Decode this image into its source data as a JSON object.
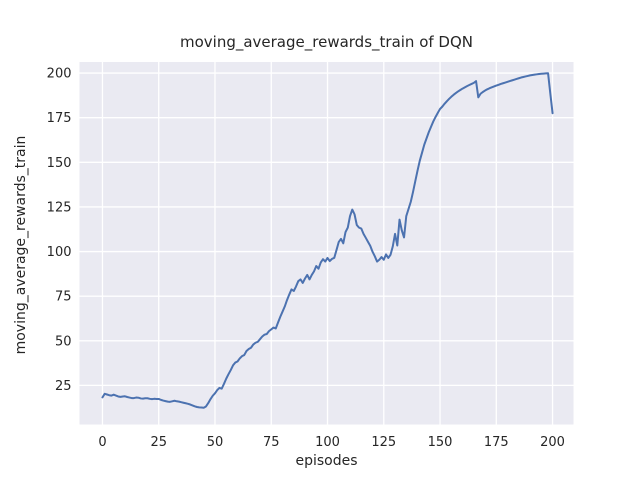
{
  "chart_data": {
    "type": "line",
    "title": "moving_average_rewards_train of DQN",
    "xlabel": "episodes",
    "ylabel": "moving_average_rewards_train",
    "xlim": [
      -10.2,
      209.3
    ],
    "ylim": [
      3.1,
      206.2
    ],
    "x_ticks": [
      0,
      25,
      50,
      75,
      100,
      125,
      150,
      175,
      200
    ],
    "y_ticks": [
      25,
      50,
      75,
      100,
      125,
      150,
      175,
      200
    ],
    "grid": true,
    "legend": "none",
    "colors": {
      "line": "#4C72B0",
      "plot_background": "#EAEAF2",
      "grid": "#FFFFFF",
      "figure_background": "#FFFFFF",
      "text": "#262626"
    },
    "series": [
      {
        "name": "moving_average_rewards_train",
        "x": [
          0,
          1,
          2,
          3,
          4,
          5,
          6,
          7,
          8,
          9,
          10,
          11,
          12,
          13,
          14,
          15,
          16,
          17,
          18,
          19,
          20,
          21,
          22,
          23,
          24,
          25,
          26,
          27,
          28,
          29,
          30,
          31,
          32,
          33,
          34,
          35,
          36,
          37,
          38,
          39,
          40,
          41,
          42,
          43,
          44,
          45,
          46,
          47,
          48,
          49,
          50,
          51,
          52,
          53,
          54,
          55,
          56,
          57,
          58,
          59,
          60,
          61,
          62,
          63,
          64,
          65,
          66,
          67,
          68,
          69,
          70,
          71,
          72,
          73,
          74,
          75,
          76,
          77,
          78,
          79,
          80,
          81,
          82,
          83,
          84,
          85,
          86,
          87,
          88,
          89,
          90,
          91,
          92,
          93,
          94,
          95,
          96,
          97,
          98,
          99,
          100,
          101,
          102,
          103,
          104,
          105,
          106,
          107,
          108,
          109,
          110,
          111,
          112,
          113,
          114,
          115,
          116,
          117,
          118,
          119,
          120,
          121,
          122,
          123,
          124,
          125,
          126,
          127,
          128,
          129,
          130,
          131,
          132,
          133,
          134,
          135,
          136,
          137,
          138,
          139,
          140,
          141,
          142,
          143,
          144,
          145,
          146,
          147,
          148,
          149,
          150,
          151,
          152,
          153,
          154,
          155,
          156,
          157,
          158,
          159,
          160,
          161,
          162,
          163,
          164,
          165,
          166,
          167,
          168,
          169,
          170,
          171,
          172,
          173,
          174,
          175,
          176,
          177,
          178,
          179,
          180,
          181,
          182,
          183,
          184,
          185,
          186,
          187,
          188,
          189,
          190,
          191,
          192,
          193,
          194,
          195,
          196,
          197,
          198,
          199,
          200
        ],
        "y": [
          18.3,
          20.3,
          19.9,
          19.5,
          19.3,
          19.8,
          19.3,
          18.8,
          18.6,
          18.8,
          18.9,
          18.5,
          18.2,
          17.9,
          17.9,
          18.2,
          18.1,
          17.7,
          17.6,
          17.8,
          17.8,
          17.5,
          17.3,
          17.5,
          17.4,
          17.4,
          16.9,
          16.5,
          16.2,
          15.9,
          15.8,
          16.1,
          16.4,
          16.1,
          15.9,
          15.6,
          15.3,
          15.0,
          14.7,
          14.3,
          13.8,
          13.3,
          12.9,
          12.7,
          12.6,
          12.5,
          13.2,
          15.1,
          17.3,
          19.2,
          20.6,
          22.4,
          23.6,
          23.2,
          25.9,
          28.8,
          31.3,
          33.6,
          36.2,
          37.8,
          38.4,
          40.1,
          41.4,
          42.0,
          44.3,
          45.4,
          46.1,
          47.9,
          48.9,
          49.4,
          50.9,
          52.4,
          53.4,
          53.8,
          55.4,
          56.4,
          57.4,
          56.9,
          60.2,
          63.4,
          66.3,
          69.2,
          72.8,
          75.9,
          78.8,
          77.9,
          80.4,
          83.4,
          84.4,
          82.4,
          84.9,
          86.9,
          84.4,
          86.9,
          88.9,
          91.9,
          90.4,
          93.9,
          95.7,
          94.4,
          96.4,
          94.7,
          95.9,
          96.5,
          100.9,
          105.4,
          107.1,
          104.6,
          110.9,
          113.4,
          119.9,
          123.5,
          120.9,
          114.9,
          113.4,
          112.9,
          109.9,
          107.7,
          105.4,
          103.2,
          99.9,
          97.4,
          94.4,
          95.4,
          96.9,
          95.4,
          98.4,
          96.4,
          98.2,
          102.9,
          109.9,
          103.4,
          117.9,
          111.9,
          107.9,
          119.9,
          123.9,
          127.9,
          133.4,
          139.4,
          145.4,
          150.9,
          155.4,
          159.9,
          163.4,
          166.9,
          169.9,
          172.9,
          175.4,
          177.7,
          179.9,
          181.2,
          182.8,
          184.2,
          185.5,
          186.7,
          187.8,
          188.8,
          189.7,
          190.5,
          191.3,
          192.0,
          192.7,
          193.3,
          193.9,
          194.5,
          195.5,
          186.4,
          188.4,
          189.4,
          190.2,
          190.9,
          191.5,
          192.0,
          192.5,
          193.0,
          193.4,
          193.9,
          194.3,
          194.7,
          195.1,
          195.5,
          195.9,
          196.3,
          196.7,
          197.1,
          197.5,
          197.8,
          198.1,
          198.4,
          198.7,
          198.9,
          199.1,
          199.3,
          199.5,
          199.6,
          199.7,
          199.8,
          199.9,
          188.5,
          177.5
        ]
      }
    ]
  }
}
